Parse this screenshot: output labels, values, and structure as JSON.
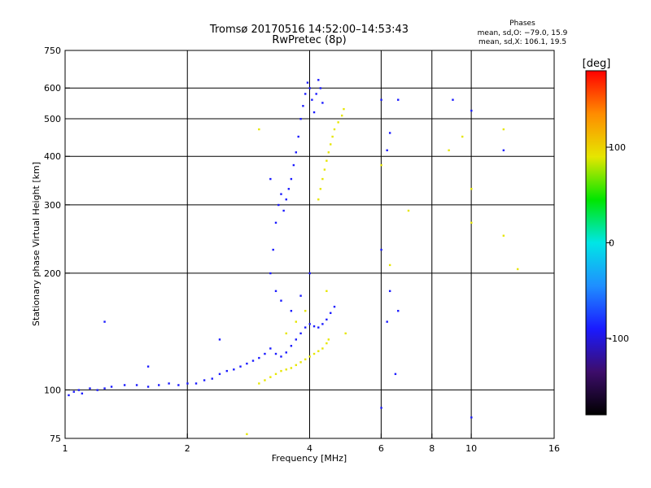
{
  "chart_data": {
    "type": "scatter",
    "title": "Tromsø 20170516 14:52:00–14:53:43",
    "subtitle": "RwPretec (8p)",
    "stats": {
      "heading": "Phases",
      "line1": "mean, sd,O: −79.0, 15.9",
      "line2": "mean, sd,X: 106.1, 19.5"
    },
    "xlabel": "Frequency [MHz]",
    "ylabel": "Stationary phase Virtual Height [km]",
    "xscale": "log",
    "yscale": "log",
    "xlim": [
      1,
      16
    ],
    "ylim": [
      75,
      750
    ],
    "xticks": [
      1,
      2,
      4,
      6,
      8,
      10,
      16
    ],
    "xtick_labels": [
      "1",
      "2",
      "4",
      "6",
      "8",
      "10",
      "16"
    ],
    "yticks": [
      75,
      100,
      200,
      300,
      400,
      500,
      600,
      750
    ],
    "ytick_labels": [
      "75",
      "100",
      "200",
      "300",
      "400",
      "500",
      "600",
      "750"
    ],
    "xgrid": [
      2,
      4,
      6,
      8,
      10
    ],
    "ygrid": [
      100,
      200,
      300,
      400,
      500,
      600
    ],
    "grid": true,
    "colorbar": {
      "label": "[deg]",
      "range": [
        -180,
        180
      ],
      "ticks": [
        100,
        0,
        -100
      ],
      "tick_labels": [
        "100",
        "0",
        "-100"
      ],
      "colors": [
        "#000000",
        "#3d0d6b",
        "#1a1aff",
        "#1f8fff",
        "#00e6e6",
        "#00e600",
        "#e6e600",
        "#ff8c00",
        "#ff0000"
      ]
    },
    "series": [
      {
        "mode": "O",
        "phase": -100,
        "points": [
          [
            1.02,
            97
          ],
          [
            1.05,
            99
          ],
          [
            1.08,
            100
          ],
          [
            1.1,
            98
          ],
          [
            1.15,
            101
          ],
          [
            1.2,
            100
          ],
          [
            1.25,
            101
          ],
          [
            1.3,
            102
          ],
          [
            1.4,
            103
          ],
          [
            1.5,
            103
          ],
          [
            1.6,
            102
          ],
          [
            1.7,
            103
          ],
          [
            1.8,
            104
          ],
          [
            1.9,
            103
          ],
          [
            2.0,
            104
          ],
          [
            2.1,
            104
          ],
          [
            2.2,
            106
          ],
          [
            2.3,
            107
          ],
          [
            2.4,
            110
          ],
          [
            2.5,
            112
          ],
          [
            2.6,
            113
          ],
          [
            2.7,
            115
          ],
          [
            2.8,
            117
          ],
          [
            2.9,
            119
          ],
          [
            3.0,
            121
          ],
          [
            3.1,
            124
          ],
          [
            3.2,
            128
          ],
          [
            3.3,
            124
          ],
          [
            3.4,
            122
          ],
          [
            3.5,
            125
          ],
          [
            3.6,
            130
          ],
          [
            3.7,
            135
          ],
          [
            3.8,
            140
          ],
          [
            3.9,
            145
          ],
          [
            4.0,
            148
          ],
          [
            4.1,
            146
          ],
          [
            4.2,
            145
          ],
          [
            4.3,
            148
          ],
          [
            4.4,
            152
          ],
          [
            4.5,
            158
          ],
          [
            4.6,
            164
          ],
          [
            3.2,
            200
          ],
          [
            3.25,
            230
          ],
          [
            3.3,
            270
          ],
          [
            3.35,
            300
          ],
          [
            3.4,
            320
          ],
          [
            3.45,
            290
          ],
          [
            3.5,
            310
          ],
          [
            3.55,
            330
          ],
          [
            3.6,
            350
          ],
          [
            3.65,
            380
          ],
          [
            3.7,
            410
          ],
          [
            3.75,
            450
          ],
          [
            3.8,
            500
          ],
          [
            3.85,
            540
          ],
          [
            3.9,
            580
          ],
          [
            3.95,
            620
          ],
          [
            4.0,
            600
          ],
          [
            4.05,
            560
          ],
          [
            4.1,
            520
          ],
          [
            4.15,
            580
          ],
          [
            4.2,
            630
          ],
          [
            4.25,
            600
          ],
          [
            4.3,
            550
          ],
          [
            3.3,
            180
          ],
          [
            3.4,
            170
          ],
          [
            3.6,
            160
          ],
          [
            3.8,
            175
          ],
          [
            4.0,
            200
          ],
          [
            1.25,
            150
          ],
          [
            1.6,
            115
          ],
          [
            2.4,
            135
          ],
          [
            6.0,
            560
          ],
          [
            6.6,
            560
          ],
          [
            6.3,
            460
          ],
          [
            6.2,
            415
          ],
          [
            6.0,
            230
          ],
          [
            6.3,
            180
          ],
          [
            6.6,
            160
          ],
          [
            6.2,
            150
          ],
          [
            6.5,
            110
          ],
          [
            9.0,
            560
          ],
          [
            10.0,
            525
          ],
          [
            12.0,
            415
          ],
          [
            10.0,
            85
          ],
          [
            3.2,
            350
          ],
          [
            6.0,
            90
          ]
        ]
      },
      {
        "mode": "X",
        "phase": 106,
        "points": [
          [
            3.0,
            104
          ],
          [
            3.1,
            106
          ],
          [
            3.2,
            108
          ],
          [
            3.3,
            110
          ],
          [
            3.4,
            112
          ],
          [
            3.5,
            113
          ],
          [
            3.6,
            114
          ],
          [
            3.7,
            116
          ],
          [
            3.8,
            118
          ],
          [
            3.9,
            120
          ],
          [
            4.0,
            122
          ],
          [
            4.1,
            124
          ],
          [
            4.2,
            126
          ],
          [
            4.3,
            128
          ],
          [
            4.4,
            132
          ],
          [
            4.45,
            135
          ],
          [
            4.2,
            310
          ],
          [
            4.25,
            330
          ],
          [
            4.3,
            350
          ],
          [
            4.35,
            370
          ],
          [
            4.4,
            390
          ],
          [
            4.45,
            410
          ],
          [
            4.5,
            430
          ],
          [
            4.55,
            450
          ],
          [
            4.6,
            470
          ],
          [
            4.7,
            490
          ],
          [
            4.8,
            510
          ],
          [
            4.85,
            530
          ],
          [
            3.5,
            140
          ],
          [
            3.7,
            150
          ],
          [
            3.9,
            160
          ],
          [
            4.4,
            180
          ],
          [
            3.0,
            470
          ],
          [
            6.0,
            380
          ],
          [
            7.0,
            290
          ],
          [
            8.8,
            415
          ],
          [
            9.5,
            450
          ],
          [
            10.0,
            330
          ],
          [
            10.0,
            270
          ],
          [
            12.0,
            470
          ],
          [
            12.0,
            250
          ],
          [
            13.0,
            205
          ],
          [
            2.8,
            77
          ],
          [
            6.3,
            210
          ],
          [
            4.9,
            140
          ]
        ]
      }
    ]
  }
}
